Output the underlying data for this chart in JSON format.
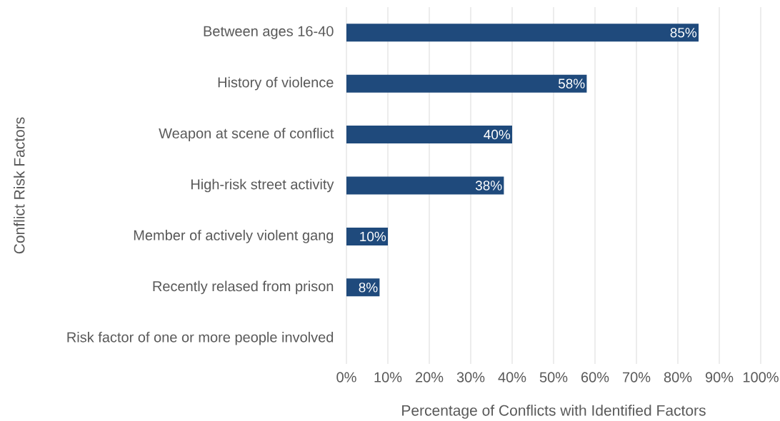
{
  "chart_data": {
    "type": "bar",
    "orientation": "horizontal",
    "xlabel": "Percentage of Conflicts with Identified Factors",
    "ylabel": "Conflict Risk Factors",
    "categories": [
      "Between ages 16-40",
      "History of violence",
      "Weapon at scene of conflict",
      "High-risk street activity",
      "Member of actively violent gang",
      "Recently relased from prison",
      "Risk factor of one or more people involved"
    ],
    "values": [
      85,
      58,
      40,
      38,
      10,
      8,
      null
    ],
    "value_labels": [
      "85%",
      "58%",
      "40%",
      "38%",
      "10%",
      "8%",
      null
    ],
    "color": "#1f4a7c",
    "xlim": [
      0,
      100
    ],
    "xticks": [
      {
        "value": 0,
        "label": "0%"
      },
      {
        "value": 10,
        "label": "10%"
      },
      {
        "value": 20,
        "label": "20%"
      },
      {
        "value": 30,
        "label": "30%"
      },
      {
        "value": 40,
        "label": "40%"
      },
      {
        "value": 50,
        "label": "50%"
      },
      {
        "value": 60,
        "label": "60%"
      },
      {
        "value": 70,
        "label": "70%"
      },
      {
        "value": 80,
        "label": "80%"
      },
      {
        "value": 90,
        "label": "90%"
      },
      {
        "value": 100,
        "label": "100%"
      }
    ],
    "grid": "x"
  }
}
